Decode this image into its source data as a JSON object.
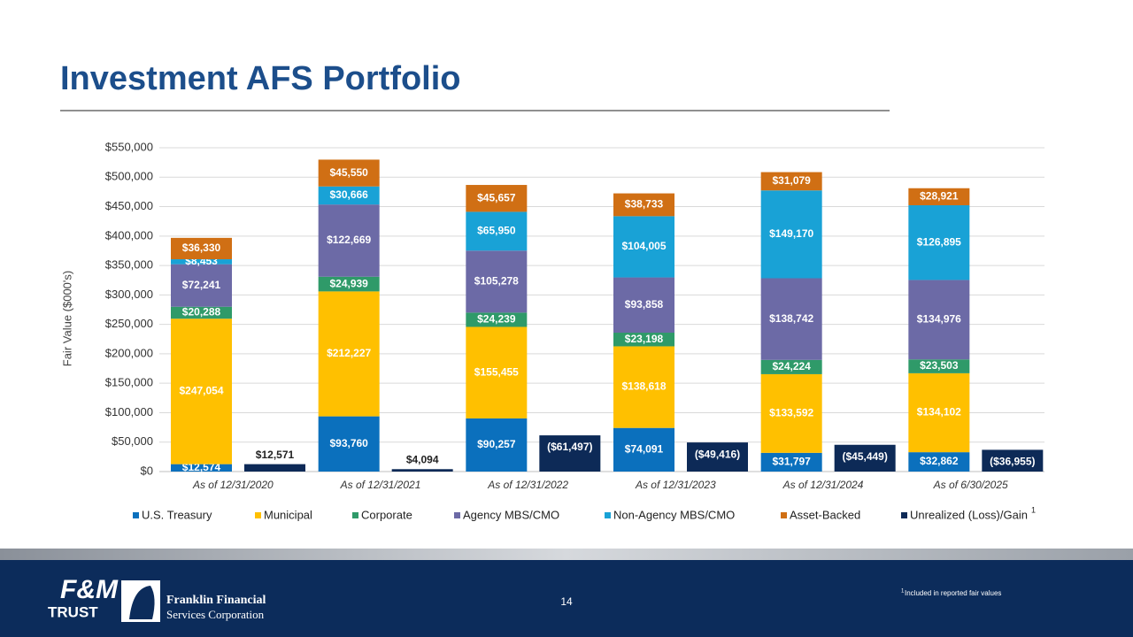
{
  "header": {
    "title": "Investment AFS Portfolio"
  },
  "chart_data": {
    "type": "stacked-bar",
    "ylabel": "Fair Value ($000's)",
    "categories": [
      "As of 12/31/2020",
      "As of 12/31/2021",
      "As of 12/31/2022",
      "As of 12/31/2023",
      "As of 12/31/2024",
      "As of 6/30/2025"
    ],
    "ylim": [
      0,
      550000
    ],
    "yticks": [
      {
        "value": 0,
        "label": "$0"
      },
      {
        "value": 50000,
        "label": "$50,000"
      },
      {
        "value": 100000,
        "label": "$100,000"
      },
      {
        "value": 150000,
        "label": "$150,000"
      },
      {
        "value": 200000,
        "label": "$200,000"
      },
      {
        "value": 250000,
        "label": "$250,000"
      },
      {
        "value": 300000,
        "label": "$300,000"
      },
      {
        "value": 350000,
        "label": "$350,000"
      },
      {
        "value": 400000,
        "label": "$400,000"
      },
      {
        "value": 450000,
        "label": "$450,000"
      },
      {
        "value": 500000,
        "label": "$500,000"
      },
      {
        "value": 550000,
        "label": "$550,000"
      }
    ],
    "grid": true,
    "legend": "bottom",
    "series": [
      {
        "name": "U.S. Treasury",
        "color": "#0b70bd",
        "values": [
          12574,
          93760,
          90257,
          74091,
          31797,
          32862
        ],
        "value_labels": [
          "$12,574",
          "$93,760",
          "$90,257",
          "$74,091",
          "$31,797",
          "$32,862"
        ]
      },
      {
        "name": "Municipal",
        "color": "#ffc000",
        "values": [
          247054,
          212227,
          155455,
          138618,
          133592,
          134102
        ],
        "value_labels": [
          "$247,054",
          "$212,227",
          "$155,455",
          "$138,618",
          "$133,592",
          "$134,102"
        ]
      },
      {
        "name": "Corporate",
        "color": "#2f9a69",
        "values": [
          20288,
          24939,
          24239,
          23198,
          24224,
          23503
        ],
        "value_labels": [
          "$20,288",
          "$24,939",
          "$24,239",
          "$23,198",
          "$24,224",
          "$23,503"
        ]
      },
      {
        "name": "Agency MBS/CMO",
        "color": "#6c6aa6",
        "values": [
          72241,
          122669,
          105278,
          93858,
          138742,
          134976
        ],
        "value_labels": [
          "$72,241",
          "$122,669",
          "$105,278",
          "$93,858",
          "$138,742",
          "$134,976"
        ]
      },
      {
        "name": "Non-Agency MBS/CMO",
        "color": "#19a2d6",
        "values": [
          8453,
          30666,
          65950,
          104005,
          149170,
          126895
        ],
        "value_labels": [
          "$8,453",
          "$30,666",
          "$65,950",
          "$104,005",
          "$149,170",
          "$126,895"
        ]
      },
      {
        "name": "Asset-Backed",
        "color": "#d06f14",
        "values": [
          36330,
          45550,
          45657,
          38733,
          31079,
          28921
        ],
        "value_labels": [
          "$36,330",
          "$45,550",
          "$45,657",
          "$38,733",
          "$31,079",
          "$28,921"
        ]
      },
      {
        "name": "Unrealized (Loss)/Gain",
        "color": "#0d2a57",
        "stack": false,
        "values": [
          12571,
          4094,
          -61497,
          -49416,
          -45449,
          -36955
        ],
        "value_labels": [
          "$12,571",
          "$4,094",
          "($61,497)",
          "($49,416)",
          "($45,449)",
          "($36,955)"
        ]
      }
    ],
    "legend_note": "1"
  },
  "footer": {
    "page": "14",
    "footnote": {
      "marker": "1",
      "text": "Included in reported fair values"
    },
    "logo_fm": {
      "line1": "F&M",
      "line2": "TRUST"
    },
    "logo_franklin": {
      "line1": "Franklin Financial",
      "line2": "Services Corporation"
    }
  }
}
